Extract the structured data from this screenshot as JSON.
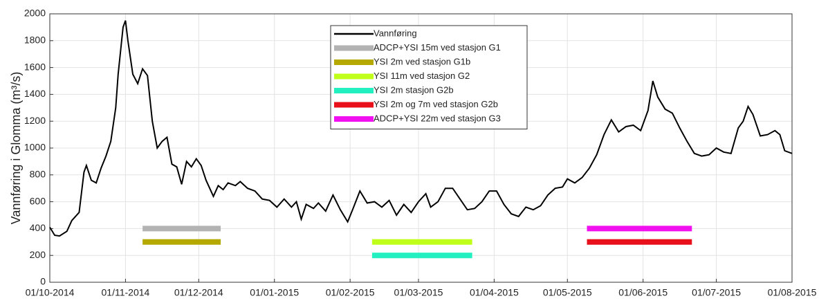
{
  "chart_data": {
    "type": "line",
    "ylabel": "Vannføring i Glomma (m³/s)",
    "xlim": [
      "2014-10-01",
      "2015-08-01"
    ],
    "xticks": [
      {
        "value": "2014-10-01",
        "label": "01/10-2014"
      },
      {
        "value": "2014-11-01",
        "label": "01/11-2014"
      },
      {
        "value": "2014-12-01",
        "label": "01/12-2014"
      },
      {
        "value": "2015-01-01",
        "label": "01/01-2015"
      },
      {
        "value": "2015-02-01",
        "label": "01/02-2015"
      },
      {
        "value": "2015-03-01",
        "label": "01/03-2015"
      },
      {
        "value": "2015-04-01",
        "label": "01/04-2015"
      },
      {
        "value": "2015-05-01",
        "label": "01/05-2015"
      },
      {
        "value": "2015-06-01",
        "label": "01/06-2015"
      },
      {
        "value": "2015-07-01",
        "label": "01/07-2015"
      },
      {
        "value": "2015-08-01",
        "label": "01/08-2015"
      }
    ],
    "ylim": [
      0,
      2000
    ],
    "yticks": [
      0,
      200,
      400,
      600,
      800,
      1000,
      1200,
      1400,
      1600,
      1800,
      2000
    ],
    "grid": true,
    "series": [
      {
        "name": "Vannføring",
        "color": "#000000",
        "x": [
          "2014-10-01",
          "2014-10-03",
          "2014-10-05",
          "2014-10-08",
          "2014-10-10",
          "2014-10-13",
          "2014-10-15",
          "2014-10-16",
          "2014-10-18",
          "2014-10-20",
          "2014-10-22",
          "2014-10-24",
          "2014-10-26",
          "2014-10-28",
          "2014-10-29",
          "2014-10-31",
          "2014-11-01",
          "2014-11-02",
          "2014-11-04",
          "2014-11-06",
          "2014-11-08",
          "2014-11-10",
          "2014-11-12",
          "2014-11-14",
          "2014-11-16",
          "2014-11-18",
          "2014-11-20",
          "2014-11-22",
          "2014-11-24",
          "2014-11-26",
          "2014-11-28",
          "2014-11-30",
          "2014-12-02",
          "2014-12-04",
          "2014-12-07",
          "2014-12-09",
          "2014-12-11",
          "2014-12-13",
          "2014-12-16",
          "2014-12-18",
          "2014-12-21",
          "2014-12-24",
          "2014-12-27",
          "2014-12-30",
          "2015-01-02",
          "2015-01-05",
          "2015-01-08",
          "2015-01-10",
          "2015-01-12",
          "2015-01-14",
          "2015-01-17",
          "2015-01-19",
          "2015-01-22",
          "2015-01-25",
          "2015-01-28",
          "2015-01-31",
          "2015-02-02",
          "2015-02-05",
          "2015-02-08",
          "2015-02-11",
          "2015-02-14",
          "2015-02-17",
          "2015-02-20",
          "2015-02-23",
          "2015-02-26",
          "2015-03-01",
          "2015-03-04",
          "2015-03-06",
          "2015-03-09",
          "2015-03-12",
          "2015-03-15",
          "2015-03-18",
          "2015-03-21",
          "2015-03-24",
          "2015-03-27",
          "2015-03-30",
          "2015-04-02",
          "2015-04-05",
          "2015-04-08",
          "2015-04-11",
          "2015-04-14",
          "2015-04-17",
          "2015-04-20",
          "2015-04-23",
          "2015-04-26",
          "2015-04-29",
          "2015-05-01",
          "2015-05-04",
          "2015-05-07",
          "2015-05-10",
          "2015-05-13",
          "2015-05-16",
          "2015-05-19",
          "2015-05-22",
          "2015-05-25",
          "2015-05-28",
          "2015-05-31",
          "2015-06-03",
          "2015-06-05",
          "2015-06-07",
          "2015-06-10",
          "2015-06-13",
          "2015-06-16",
          "2015-06-19",
          "2015-06-22",
          "2015-06-25",
          "2015-06-28",
          "2015-07-01",
          "2015-07-04",
          "2015-07-07",
          "2015-07-10",
          "2015-07-12",
          "2015-07-14",
          "2015-07-16",
          "2015-07-19",
          "2015-07-22",
          "2015-07-25",
          "2015-07-27",
          "2015-07-29",
          "2015-08-01"
        ],
        "values": [
          410,
          350,
          345,
          380,
          460,
          520,
          820,
          870,
          760,
          740,
          850,
          940,
          1050,
          1300,
          1550,
          1900,
          1950,
          1800,
          1550,
          1480,
          1590,
          1540,
          1200,
          1000,
          1050,
          1080,
          880,
          860,
          730,
          900,
          860,
          920,
          870,
          760,
          640,
          720,
          690,
          740,
          720,
          750,
          700,
          680,
          620,
          610,
          560,
          620,
          560,
          600,
          470,
          580,
          550,
          590,
          530,
          650,
          540,
          450,
          540,
          680,
          590,
          600,
          560,
          610,
          500,
          580,
          520,
          600,
          660,
          560,
          600,
          700,
          700,
          620,
          540,
          550,
          600,
          680,
          680,
          580,
          510,
          490,
          560,
          540,
          570,
          650,
          700,
          710,
          770,
          740,
          780,
          850,
          950,
          1100,
          1210,
          1120,
          1160,
          1170,
          1130,
          1280,
          1500,
          1380,
          1290,
          1260,
          1150,
          1050,
          960,
          940,
          950,
          1000,
          970,
          960,
          1150,
          1200,
          1310,
          1250,
          1090,
          1100,
          1130,
          1100,
          980,
          960
        ]
      }
    ],
    "segments": [
      {
        "name": "ADCP+YSI 15m ved stasjon G1",
        "color": "#b3b3b3",
        "x": [
          "2014-11-08",
          "2014-12-10"
        ],
        "y": 400
      },
      {
        "name": "YSI 2m ved stasjon G1b",
        "color": "#b5a800",
        "x": [
          "2014-11-08",
          "2014-12-10"
        ],
        "y": 300
      },
      {
        "name": "YSI 11m ved stasjon G2",
        "color": "#c0ff1a",
        "x": [
          "2015-02-10",
          "2015-03-23"
        ],
        "y": 300
      },
      {
        "name": "YSI 2m stasjon G2b",
        "color": "#22f0c0",
        "x": [
          "2015-02-10",
          "2015-03-23"
        ],
        "y": 200
      },
      {
        "name": "YSI 2m og 7m ved stasjon G2b",
        "color": "#e8101a",
        "x": [
          "2015-05-09",
          "2015-06-21"
        ],
        "y": 300
      },
      {
        "name": "ADCP+YSI 22m ved stasjon G3",
        "color": "#f010f0",
        "x": [
          "2015-05-09",
          "2015-06-21"
        ],
        "y": 400
      }
    ]
  }
}
